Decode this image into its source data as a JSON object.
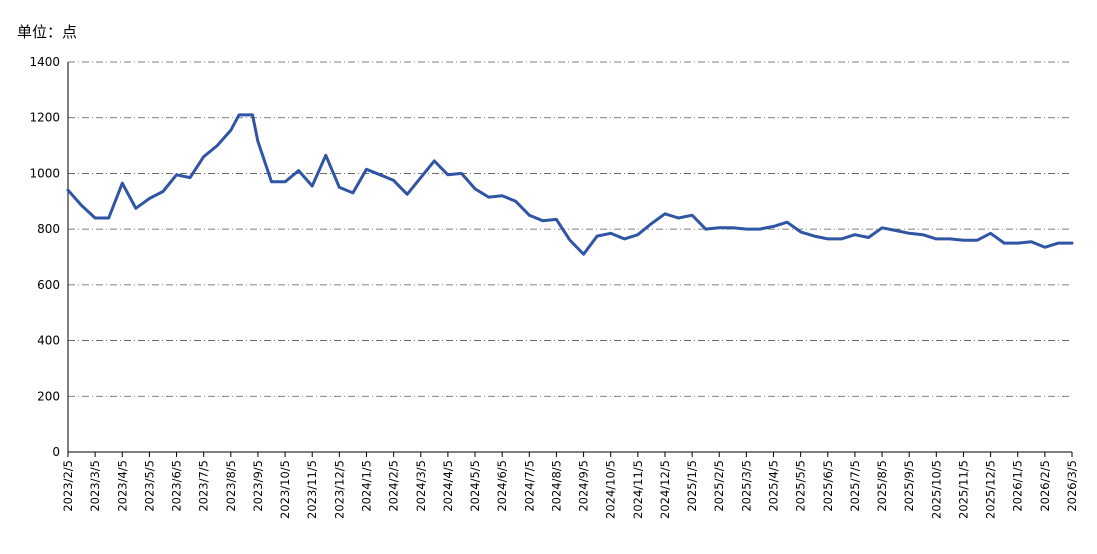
{
  "unit_label": "单位：点",
  "chart_data": {
    "type": "line",
    "title": "",
    "xlabel": "",
    "ylabel": "",
    "ylim": [
      0,
      1400
    ],
    "yticks": [
      0,
      200,
      400,
      600,
      800,
      1000,
      1200,
      1400
    ],
    "grid": "horizontal dash-dot",
    "categories": [
      "2023/2/5",
      "2023/3/5",
      "2023/4/5",
      "2023/5/5",
      "2023/6/5",
      "2023/7/5",
      "2023/8/5",
      "2023/9/5",
      "2023/10/5",
      "2023/11/5",
      "2023/12/5",
      "2024/1/5",
      "2024/2/5",
      "2024/3/5",
      "2024/4/5",
      "2024/5/5",
      "2024/6/5",
      "2024/7/5",
      "2024/8/5",
      "2024/9/5",
      "2024/10/5",
      "2024/11/5",
      "2024/12/5",
      "2025/1/5",
      "2025/2/5",
      "2025/3/5",
      "2025/4/5",
      "2025/5/5",
      "2025/6/5",
      "2025/7/5",
      "2025/8/5",
      "2025/9/5",
      "2025/10/5",
      "2025/11/5",
      "2025/12/5",
      "2026/1/5",
      "2026/2/5",
      "2026/3/5"
    ],
    "series": [
      {
        "color": "#2f55a4",
        "x": [
          0,
          0.5,
          1,
          1.5,
          2,
          2.5,
          3,
          3.5,
          4,
          4.5,
          5,
          5.5,
          6,
          6.3,
          6.5,
          6.8,
          7,
          7.5,
          8,
          8.5,
          9,
          9.5,
          10,
          10.5,
          11,
          11.5,
          12,
          12.5,
          13,
          13.5,
          14,
          14.5,
          15,
          15.5,
          16,
          16.5,
          17,
          17.5,
          18,
          18.5,
          19,
          19.5,
          20,
          20.5,
          21,
          21.5,
          22,
          22.5,
          23,
          23.5,
          24,
          24.5,
          25,
          25.5,
          26,
          26.5,
          27,
          27.5,
          28,
          28.5,
          29,
          29.5,
          30,
          30.5,
          31,
          31.5,
          32,
          32.5,
          33,
          33.5,
          34,
          34.5,
          35,
          35.5,
          36,
          36.5,
          37
        ],
        "values": [
          940,
          885,
          840,
          840,
          965,
          875,
          910,
          935,
          995,
          985,
          1060,
          1100,
          1155,
          1210,
          1210,
          1210,
          1115,
          970,
          970,
          1010,
          955,
          1065,
          950,
          930,
          1015,
          995,
          975,
          925,
          985,
          1045,
          995,
          1000,
          945,
          915,
          920,
          900,
          850,
          830,
          835,
          760,
          710,
          775,
          785,
          765,
          780,
          820,
          855,
          840,
          850,
          800,
          805,
          805,
          800,
          800,
          810,
          825,
          790,
          775,
          765,
          765,
          780,
          770,
          805,
          795,
          785,
          780,
          765,
          765,
          760,
          760,
          785,
          750,
          750,
          755,
          735,
          750,
          750
        ]
      }
    ]
  }
}
